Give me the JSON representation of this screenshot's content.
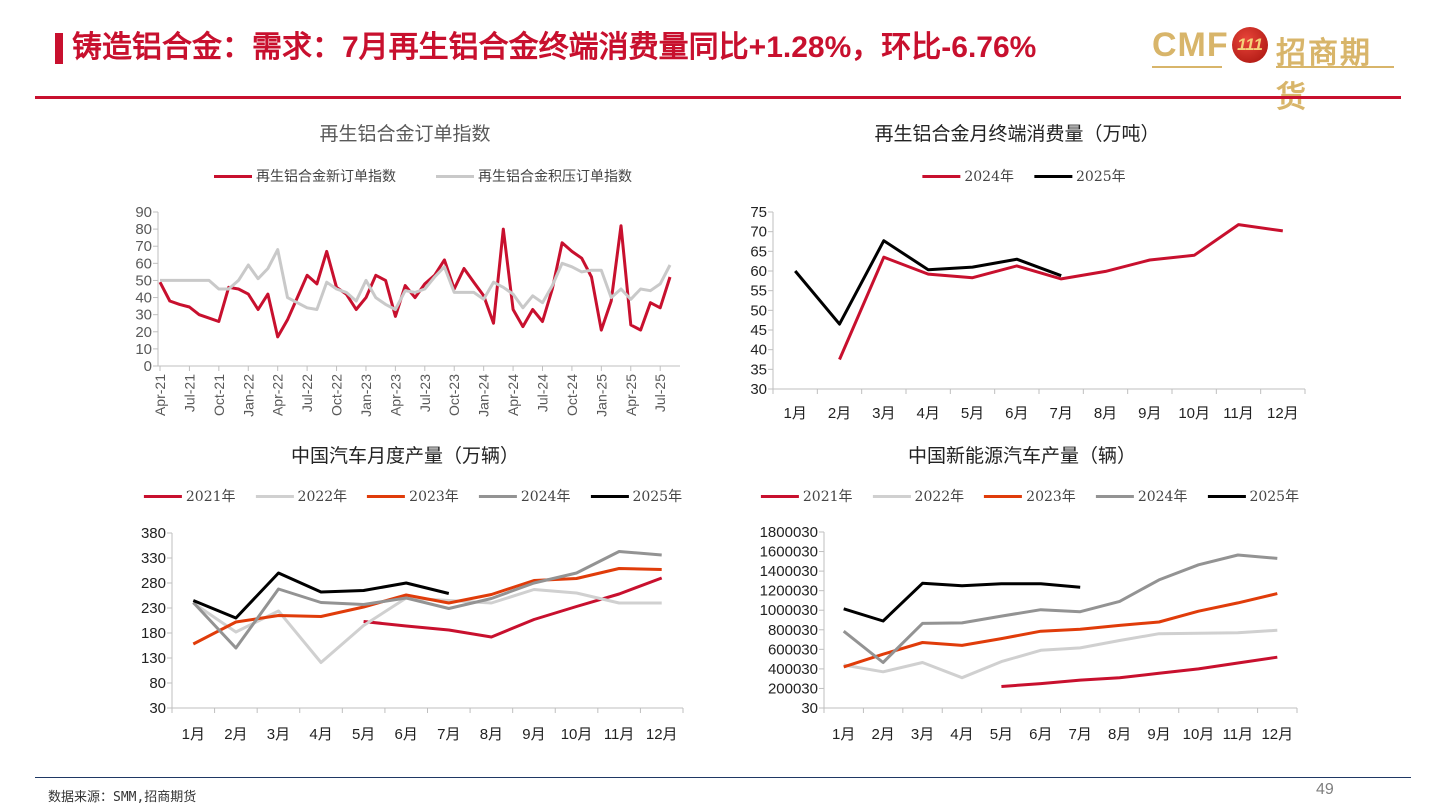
{
  "header": {
    "title": "铸造铝合金：需求：7月再生铝合金终端消费量同比+1.28%，环比-6.76%",
    "accent_color": "#c8102e",
    "logo": {
      "cmf": "CMF",
      "emblem": "111",
      "company": "招商期货"
    }
  },
  "footer": {
    "source": "数据来源：SMM,招商期货",
    "page_number": "49"
  },
  "chart_data": [
    {
      "type": "line",
      "title": "再生铝合金订单指数",
      "categories": [
        "Apr-21",
        "May-21",
        "Jun-21",
        "Jul-21",
        "Aug-21",
        "Sep-21",
        "Oct-21",
        "Nov-21",
        "Dec-21",
        "Jan-22",
        "Feb-22",
        "Mar-22",
        "Apr-22",
        "May-22",
        "Jun-22",
        "Jul-22",
        "Aug-22",
        "Sep-22",
        "Oct-22",
        "Nov-22",
        "Dec-22",
        "Jan-23",
        "Feb-23",
        "Mar-23",
        "Apr-23",
        "May-23",
        "Jun-23",
        "Jul-23",
        "Aug-23",
        "Sep-23",
        "Oct-23",
        "Nov-23",
        "Dec-23",
        "Jan-24",
        "Feb-24",
        "Mar-24",
        "Apr-24",
        "May-24",
        "Jun-24",
        "Jul-24",
        "Aug-24",
        "Sep-24",
        "Oct-24",
        "Nov-24",
        "Dec-24",
        "Jan-25",
        "Feb-25",
        "Mar-25",
        "Apr-25",
        "May-25",
        "Jun-25",
        "Jul-25",
        "Aug-25"
      ],
      "x_tick_labels": [
        "Apr-21",
        "Jul-21",
        "Oct-21",
        "Jan-22",
        "Apr-22",
        "Jul-22",
        "Oct-22",
        "Jan-23",
        "Apr-23",
        "Jul-23",
        "Oct-23",
        "Jan-24",
        "Apr-24",
        "Jul-24",
        "Oct-24",
        "Jan-25",
        "Apr-25",
        "Jul-25"
      ],
      "ylim": [
        0,
        90
      ],
      "yticks": [
        "0",
        "10",
        "20",
        "30",
        "40",
        "50",
        "60",
        "70",
        "80",
        "90"
      ],
      "legend": "top",
      "grid": false,
      "series": [
        {
          "name": "再生铝合金新订单指数",
          "color": "#c8102e",
          "values": [
            49,
            38,
            36,
            34.5,
            30,
            28,
            26,
            46,
            45,
            42,
            33,
            42,
            17,
            27,
            40,
            53,
            48,
            67,
            46,
            42,
            33,
            40,
            53,
            50,
            29,
            47,
            40,
            48,
            53,
            62,
            45,
            57,
            49,
            41,
            25,
            80,
            33,
            23,
            33,
            26,
            45,
            72,
            67,
            63,
            52,
            21,
            38,
            82,
            24,
            21,
            37,
            34,
            52
          ]
        },
        {
          "name": "再生铝合金积压订单指数",
          "color": "#c9c9c9",
          "values": [
            50,
            50,
            50,
            50,
            50,
            50,
            45,
            45,
            50,
            59,
            51,
            57,
            68,
            40,
            37,
            34,
            33,
            49,
            45,
            43,
            38,
            50,
            40,
            36,
            33,
            44,
            43,
            45,
            52,
            58,
            43,
            43,
            43,
            39,
            49,
            46,
            42,
            34,
            41,
            37,
            47,
            60,
            58,
            55,
            56,
            56,
            40,
            45,
            39,
            45,
            44,
            48,
            59
          ]
        }
      ]
    },
    {
      "type": "line",
      "title": "再生铝合金月终端消费量（万吨）",
      "categories": [
        "1月",
        "2月",
        "3月",
        "4月",
        "5月",
        "6月",
        "7月",
        "8月",
        "9月",
        "10月",
        "11月",
        "12月"
      ],
      "ylim": [
        30,
        75
      ],
      "yticks": [
        "30",
        "35",
        "40",
        "45",
        "50",
        "55",
        "60",
        "65",
        "70",
        "75"
      ],
      "legend": "top",
      "grid": false,
      "series": [
        {
          "name": "2024年",
          "color": "#c8102e",
          "values": [
            null,
            37.5,
            63.5,
            59.2,
            58.3,
            61.3,
            58.0,
            59.9,
            62.8,
            64.0,
            71.8,
            70.2
          ]
        },
        {
          "name": "2025年",
          "color": "#000000",
          "values": [
            60.0,
            46.5,
            67.7,
            60.3,
            61.0,
            63.0,
            58.8,
            null,
            null,
            null,
            null,
            null
          ]
        }
      ]
    },
    {
      "type": "line",
      "title": "中国汽车月度产量（万辆）",
      "categories": [
        "1月",
        "2月",
        "3月",
        "4月",
        "5月",
        "6月",
        "7月",
        "8月",
        "9月",
        "10月",
        "11月",
        "12月"
      ],
      "ylim": [
        30,
        380
      ],
      "yticks": [
        "30",
        "80",
        "130",
        "180",
        "230",
        "280",
        "330",
        "380"
      ],
      "legend": "top",
      "grid": false,
      "series": [
        {
          "name": "2021年",
          "color": "#c8102e",
          "values": [
            null,
            null,
            null,
            null,
            203,
            194,
            186,
            172,
            207,
            233,
            258,
            290
          ]
        },
        {
          "name": "2022年",
          "color": "#d0d0d0",
          "values": [
            240,
            182,
            224,
            121,
            195,
            250,
            245,
            240,
            267,
            260,
            240,
            240
          ]
        },
        {
          "name": "2023年",
          "color": "#e03c0a",
          "values": [
            158,
            202,
            215,
            213,
            232,
            256,
            240,
            257,
            285,
            289,
            309,
            307
          ]
        },
        {
          "name": "2024年",
          "color": "#939393",
          "values": [
            241,
            150,
            268,
            241,
            237,
            250,
            229,
            249,
            280,
            300,
            343,
            336
          ]
        },
        {
          "name": "2025年",
          "color": "#000000",
          "values": [
            245,
            210,
            300,
            262,
            265,
            280,
            259,
            null,
            null,
            null,
            null,
            null
          ]
        }
      ]
    },
    {
      "type": "line",
      "title": "中国新能源汽车产量（辆）",
      "categories": [
        "1月",
        "2月",
        "3月",
        "4月",
        "5月",
        "6月",
        "7月",
        "8月",
        "9月",
        "10月",
        "11月",
        "12月"
      ],
      "ylim": [
        30,
        1800030
      ],
      "yticks": [
        "30",
        "200030",
        "400030",
        "600030",
        "800030",
        "1000030",
        "1200030",
        "1400030",
        "1600030",
        "1800030"
      ],
      "legend": "top",
      "grid": false,
      "series": [
        {
          "name": "2021年",
          "color": "#c8102e",
          "values": [
            null,
            null,
            null,
            null,
            220000,
            250000,
            285000,
            310000,
            355000,
            400000,
            460000,
            520000
          ]
        },
        {
          "name": "2022年",
          "color": "#d0d0d0",
          "values": [
            440000,
            370000,
            465000,
            310000,
            475000,
            590000,
            615000,
            690000,
            760000,
            765000,
            770000,
            795000
          ]
        },
        {
          "name": "2023年",
          "color": "#e03c0a",
          "values": [
            420000,
            550000,
            670000,
            640000,
            710000,
            785000,
            805000,
            845000,
            880000,
            990000,
            1075000,
            1170000
          ]
        },
        {
          "name": "2024年",
          "color": "#939393",
          "values": [
            785000,
            465000,
            865000,
            870000,
            940000,
            1005000,
            985000,
            1090000,
            1310000,
            1465000,
            1565000,
            1530000
          ]
        },
        {
          "name": "2025年",
          "color": "#000000",
          "values": [
            1015000,
            890000,
            1275000,
            1250000,
            1270000,
            1270000,
            1235000,
            null,
            null,
            null,
            null,
            null
          ]
        }
      ]
    }
  ]
}
